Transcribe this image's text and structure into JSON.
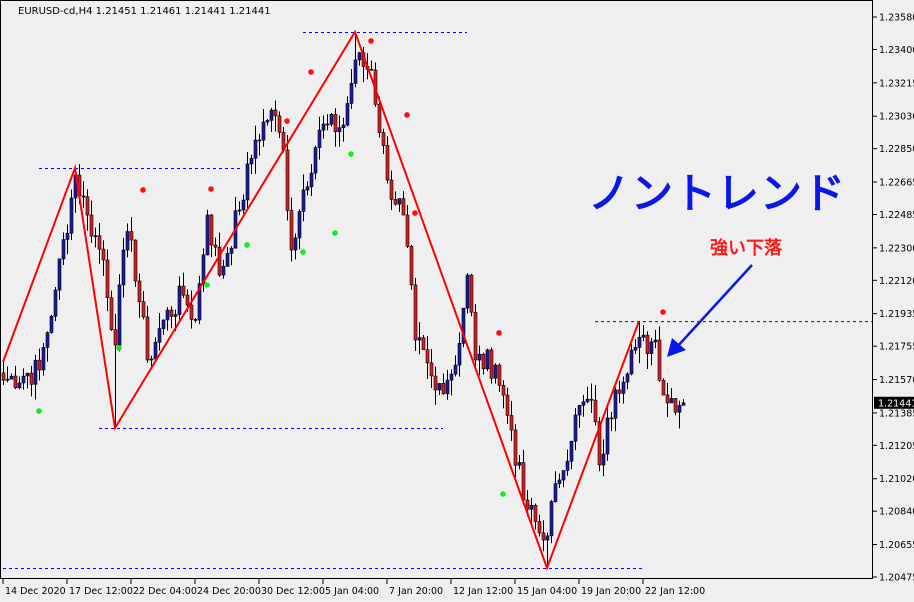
{
  "header": {
    "symbol_line": "EURUSD-cd,H4  1.21451 1.21461 1.21441 1.21441"
  },
  "annotations": {
    "title": "ノントレンド",
    "note": "強い下落",
    "title_color": "#0a18e6",
    "note_color": "#ff1a1a",
    "arrow_color": "#0a18e6"
  },
  "chart_data": {
    "type": "candlestick",
    "symbol": "EURUSD-cd",
    "timeframe": "H4",
    "ohlc_current": {
      "open": 1.21451,
      "high": 1.21461,
      "low": 1.21441,
      "close": 1.21441
    },
    "first_bar": "14 Dec 20:00",
    "last_bar": "26 Jan 04:00",
    "ylim": [
      1.20475,
      1.2358
    ],
    "y_ticks": [
      "1.23580",
      "1.23400",
      "1.23215",
      "1.23030",
      "1.22850",
      "1.22665",
      "1.22485",
      "1.22300",
      "1.22120",
      "1.21935",
      "1.21755",
      "1.21570",
      "1.21385",
      "1.21205",
      "1.21020",
      "1.20840",
      "1.20655",
      "1.20475"
    ],
    "x_ticks": [
      {
        "bar": "14 Dec 20:00",
        "label": "14 Dec 2020"
      },
      {
        "bar": "17 Dec 12:00",
        "label": "17 Dec 12:00"
      },
      {
        "bar": "22 Dec 04:00",
        "label": "22 Dec 04:00"
      },
      {
        "bar": "24 Dec 20:00",
        "label": "24 Dec 20:00"
      },
      {
        "bar": "30 Dec 12:00",
        "label": "30 Dec 12:00"
      },
      {
        "bar": "5 Jan 04:00",
        "label": "5 Jan 04:00"
      },
      {
        "bar": "7 Jan 20:00",
        "label": "7 Jan 20:00"
      },
      {
        "bar": "12 Jan 12:00",
        "label": "12 Jan 12:00"
      },
      {
        "bar": "15 Jan 04:00",
        "label": "15 Jan 04:00"
      },
      {
        "bar": "19 Jan 20:00",
        "label": "19 Jan 20:00"
      },
      {
        "bar": "22 Jan 12:00",
        "label": "22 Jan 12:00"
      }
    ],
    "current_price_label": "1.21441",
    "close_path": [
      [
        "14 Dec 20:00",
        1.21567
      ],
      [
        "16 Dec 08:00",
        1.21623
      ],
      [
        "17 Dec 00:00",
        1.22066
      ],
      [
        "17 Dec 20:00",
        1.22704
      ],
      [
        "18 Dec 08:00",
        1.22482
      ],
      [
        "21 Dec 00:00",
        1.22233
      ],
      [
        "21 Dec 12:00",
        1.21761
      ],
      [
        "21 Dec 20:00",
        1.22288
      ],
      [
        "22 Dec 04:00",
        1.22343
      ],
      [
        "22 Dec 20:00",
        1.21678
      ],
      [
        "23 Dec 12:00",
        1.219
      ],
      [
        "24 Dec 08:00",
        1.22038
      ],
      [
        "24 Dec 20:00",
        1.219
      ],
      [
        "28 Dec 08:00",
        1.22482
      ],
      [
        "28 Dec 20:00",
        1.22149
      ],
      [
        "29 Dec 16:00",
        1.2251
      ],
      [
        "30 Dec 08:00",
        1.22898
      ],
      [
        "31 Dec 00:00",
        1.23064
      ],
      [
        "31 Dec 12:00",
        1.22843
      ],
      [
        "31 Dec 20:00",
        1.22288
      ],
      [
        "4 Jan 08:00",
        1.22621
      ],
      [
        "5 Jan 00:00",
        1.22953
      ],
      [
        "6 Jan 00:00",
        1.22981
      ],
      [
        "6 Jan 12:00",
        1.23342
      ],
      [
        "7 Jan 04:00",
        1.23286
      ],
      [
        "7 Jan 20:00",
        1.22676
      ],
      [
        "8 Jan 12:00",
        1.22482
      ],
      [
        "11 Jan 00:00",
        1.21789
      ],
      [
        "11 Jan 20:00",
        1.21512
      ],
      [
        "12 Jan 16:00",
        1.2165
      ],
      [
        "13 Jan 04:00",
        1.22149
      ],
      [
        "13 Jan 12:00",
        1.21678
      ],
      [
        "14 Jan 08:00",
        1.2165
      ],
      [
        "15 Jan 00:00",
        1.2129
      ],
      [
        "15 Jan 12:00",
        1.20902
      ],
      [
        "18 Jan 08:00",
        1.2068
      ],
      [
        "19 Jan 00:00",
        1.21013
      ],
      [
        "19 Jan 16:00",
        1.21373
      ],
      [
        "20 Jan 08:00",
        1.21456
      ],
      [
        "20 Jan 16:00",
        1.21096
      ],
      [
        "21 Jan 08:00",
        1.21512
      ],
      [
        "22 Jan 00:00",
        1.21733
      ],
      [
        "25 Jan 00:00",
        1.21789
      ],
      [
        "25 Jan 08:00",
        1.21484
      ],
      [
        "26 Jan 04:00",
        1.21441
      ]
    ],
    "zigzag": [
      [
        "14 Dec 20:00",
        1.21667
      ],
      [
        "17 Dec 20:00",
        1.22743
      ],
      [
        "21 Dec 12:00",
        1.21301
      ],
      [
        "6 Jan 12:00",
        1.23497
      ],
      [
        "18 Jan 12:00",
        1.20525
      ],
      [
        "22 Jan 08:00",
        1.21894
      ]
    ],
    "zigzag_color": "#ff0000",
    "levels": [
      {
        "price": 1.22743,
        "from": "16 Dec 08:00",
        "to": "29 Dec 20:00"
      },
      {
        "price": 1.23497,
        "from": "4 Jan 08:00",
        "to": "13 Jan 04:00"
      },
      {
        "price": 1.21301,
        "from": "18 Dec 20:00",
        "to": "12 Jan 04:00"
      },
      {
        "price": 1.21894,
        "from": "20 Jan 12:00",
        "to": "right-edge"
      },
      {
        "price": 1.20525,
        "from": "14 Dec 20:00",
        "to": "22 Jan 12:00"
      }
    ],
    "level_color": "#0000ff",
    "red_dots": [
      [
        "22 Dec 16:00",
        1.22621
      ],
      [
        "28 Dec 12:00",
        1.22626
      ],
      [
        "31 Dec 16:00",
        1.23003
      ],
      [
        "4 Jan 16:00",
        1.23275
      ],
      [
        "7 Jan 04:00",
        1.23447
      ],
      [
        "8 Jan 16:00",
        1.23037
      ],
      [
        "11 Jan 00:00",
        1.22493
      ],
      [
        "14 Jan 12:00",
        1.21828
      ],
      [
        "25 Jan 08:00",
        1.21944
      ]
    ],
    "green_dots": [
      [
        "16 Dec 08:00",
        1.21395
      ],
      [
        "21 Dec 16:00",
        1.21745
      ],
      [
        "28 Dec 08:00",
        1.22094
      ],
      [
        "30 Dec 00:00",
        1.22316
      ],
      [
        "4 Jan 08:00",
        1.22277
      ],
      [
        "5 Jan 16:00",
        1.22382
      ],
      [
        "6 Jan 08:00",
        1.2282
      ],
      [
        "14 Jan 16:00",
        1.20935
      ]
    ],
    "bull_color": "#1a1aa0",
    "bear_color": "#d42020"
  }
}
